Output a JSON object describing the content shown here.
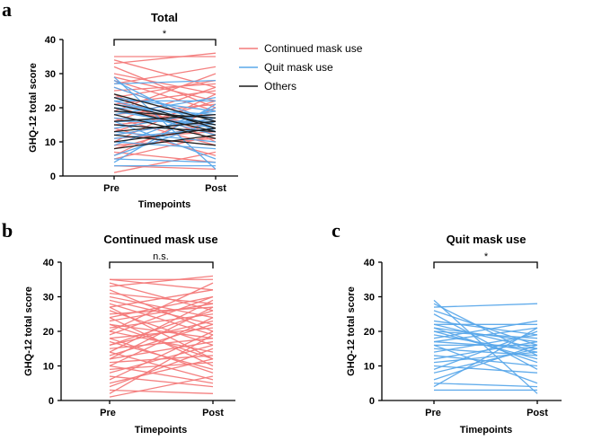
{
  "colors": {
    "continued": "#f47a7a",
    "quit": "#5aa8ea",
    "others": "#1a1a1a"
  },
  "chart_data": [
    {
      "panel": "a",
      "type": "line",
      "title": "Total",
      "xlabel": "Timepoints",
      "ylabel": "GHQ-12 total score",
      "categories": [
        "Pre",
        "Post"
      ],
      "ylim": [
        0,
        40
      ],
      "yticks": [
        "0",
        "10",
        "20",
        "30",
        "40"
      ],
      "significance": "*",
      "legend_position": "right",
      "legend": [
        {
          "name": "Continued mask use",
          "color": "#f47a7a"
        },
        {
          "name": "Quit mask use",
          "color": "#5aa8ea"
        },
        {
          "name": "Others",
          "color": "#1a1a1a"
        }
      ],
      "series": [
        {
          "name": "Continued mask use",
          "color": "#f47a7a",
          "pairs": [
            [
              35,
              35
            ],
            [
              34,
              26
            ],
            [
              33,
              36
            ],
            [
              32,
              20
            ],
            [
              30,
              24
            ],
            [
              29,
              22
            ],
            [
              28,
              19
            ],
            [
              27,
              32
            ],
            [
              26,
              16
            ],
            [
              25,
              27
            ],
            [
              24,
              10
            ],
            [
              23,
              28
            ],
            [
              22,
              12
            ],
            [
              21,
              25
            ],
            [
              20,
              14
            ],
            [
              19,
              30
            ],
            [
              18,
              21
            ],
            [
              17,
              9
            ],
            [
              16,
              26
            ],
            [
              15,
              18
            ],
            [
              14,
              6
            ],
            [
              13,
              22
            ],
            [
              12,
              17
            ],
            [
              11,
              13
            ],
            [
              10,
              24
            ],
            [
              9,
              11
            ],
            [
              8,
              16
            ],
            [
              7,
              4
            ],
            [
              6,
              20
            ],
            [
              5,
              12
            ],
            [
              3,
              2
            ],
            [
              1,
              7
            ]
          ]
        },
        {
          "name": "Quit mask use",
          "color": "#5aa8ea",
          "pairs": [
            [
              29,
              2
            ],
            [
              28,
              13
            ],
            [
              27,
              28
            ],
            [
              26,
              16
            ],
            [
              23,
              19
            ],
            [
              22,
              15
            ],
            [
              22,
              22
            ],
            [
              21,
              17
            ],
            [
              20,
              12
            ],
            [
              20,
              18
            ],
            [
              19,
              14
            ],
            [
              18,
              23
            ],
            [
              17,
              15
            ],
            [
              16,
              5
            ],
            [
              16,
              16
            ],
            [
              15,
              13
            ],
            [
              14,
              19
            ],
            [
              13,
              10
            ],
            [
              12,
              17
            ],
            [
              11,
              14
            ],
            [
              10,
              8
            ],
            [
              9,
              20
            ],
            [
              6,
              16
            ],
            [
              5,
              4
            ],
            [
              4,
              21
            ],
            [
              3,
              3
            ]
          ]
        },
        {
          "name": "Others",
          "color": "#1a1a1a",
          "pairs": [
            [
              24,
              16
            ],
            [
              23,
              14
            ],
            [
              21,
              15
            ],
            [
              20,
              13
            ],
            [
              19,
              17
            ],
            [
              18,
              11
            ],
            [
              16,
              18
            ],
            [
              15,
              13
            ],
            [
              13,
              16
            ],
            [
              12,
              9
            ],
            [
              10,
              14
            ],
            [
              8,
              12
            ]
          ]
        }
      ]
    },
    {
      "panel": "b",
      "type": "line",
      "title": "Continued mask use",
      "xlabel": "Timepoints",
      "ylabel": "GHQ-12 total score",
      "categories": [
        "Pre",
        "Post"
      ],
      "ylim": [
        0,
        40
      ],
      "yticks": [
        "0",
        "10",
        "20",
        "30",
        "40"
      ],
      "significance": "n.s.",
      "series": [
        {
          "name": "Continued mask use",
          "color": "#f47a7a",
          "pairs": [
            [
              35,
              35
            ],
            [
              35,
              32
            ],
            [
              34,
              26
            ],
            [
              33,
              36
            ],
            [
              32,
              20
            ],
            [
              31,
              28
            ],
            [
              30,
              24
            ],
            [
              29,
              22
            ],
            [
              28,
              19
            ],
            [
              27,
              32
            ],
            [
              27,
              12
            ],
            [
              26,
              16
            ],
            [
              25,
              27
            ],
            [
              24,
              10
            ],
            [
              24,
              30
            ],
            [
              23,
              28
            ],
            [
              22,
              12
            ],
            [
              22,
              18
            ],
            [
              21,
              25
            ],
            [
              20,
              14
            ],
            [
              20,
              34
            ],
            [
              19,
              30
            ],
            [
              18,
              21
            ],
            [
              18,
              8
            ],
            [
              17,
              9
            ],
            [
              16,
              26
            ],
            [
              16,
              23
            ],
            [
              15,
              18
            ],
            [
              14,
              6
            ],
            [
              14,
              29
            ],
            [
              13,
              22
            ],
            [
              12,
              17
            ],
            [
              12,
              27
            ],
            [
              11,
              13
            ],
            [
              10,
              24
            ],
            [
              10,
              5
            ],
            [
              9,
              11
            ],
            [
              8,
              16
            ],
            [
              7,
              4
            ],
            [
              6,
              20
            ],
            [
              5,
              12
            ],
            [
              4,
              15
            ],
            [
              3,
              2
            ],
            [
              2,
              19
            ],
            [
              1,
              7
            ]
          ]
        }
      ]
    },
    {
      "panel": "c",
      "type": "line",
      "title": "Quit mask use",
      "xlabel": "Timepoints",
      "ylabel": "GHQ-12 total score",
      "categories": [
        "Pre",
        "Post"
      ],
      "ylim": [
        0,
        40
      ],
      "yticks": [
        "0",
        "10",
        "20",
        "30",
        "40"
      ],
      "significance": "*",
      "series": [
        {
          "name": "Quit mask use",
          "color": "#5aa8ea",
          "pairs": [
            [
              29,
              2
            ],
            [
              28,
              13
            ],
            [
              27,
              28
            ],
            [
              26,
              16
            ],
            [
              25,
              9
            ],
            [
              23,
              19
            ],
            [
              22,
              15
            ],
            [
              22,
              22
            ],
            [
              21,
              17
            ],
            [
              21,
              11
            ],
            [
              20,
              12
            ],
            [
              20,
              18
            ],
            [
              19,
              14
            ],
            [
              18,
              23
            ],
            [
              17,
              15
            ],
            [
              17,
              21
            ],
            [
              16,
              5
            ],
            [
              16,
              16
            ],
            [
              15,
              13
            ],
            [
              14,
              19
            ],
            [
              13,
              10
            ],
            [
              12,
              17
            ],
            [
              11,
              14
            ],
            [
              10,
              8
            ],
            [
              9,
              20
            ],
            [
              8,
              15
            ],
            [
              6,
              16
            ],
            [
              5,
              4
            ],
            [
              4,
              21
            ],
            [
              3,
              3
            ]
          ]
        }
      ]
    }
  ]
}
